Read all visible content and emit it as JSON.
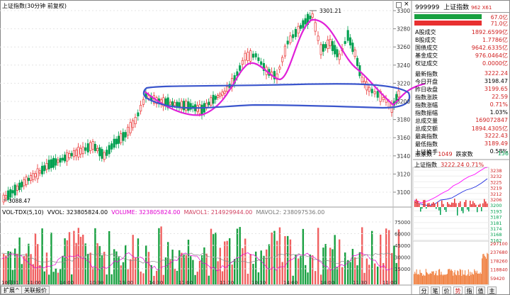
{
  "chart_header": {
    "title": "上证指数(30分钟 前复权)",
    "vol_label": "VOL-TDX(5,10)",
    "vvol": "VVOL: 323805824.00",
    "volume": "VOLUME: 323805824.00",
    "mavol1": "MAVOL1: 214929944.00",
    "mavol2": "MAVOL2: 238097536.00"
  },
  "price_axis": [
    "3300",
    "3280",
    "3260",
    "3240",
    "3220",
    "3200",
    "3180",
    "3160",
    "3140",
    "3120",
    "3100"
  ],
  "volume_axis": [
    "75000",
    "60000",
    "45000",
    "30000",
    "15000"
  ],
  "x_axis_labels": [
    "10月31",
    "11:00",
    "14:00",
    "10:30",
    "15:00",
    "14:30",
    "11:00",
    "11:30",
    "10:30",
    "14:00",
    "14:00",
    "11:30",
    "11:00",
    "30分钟"
  ],
  "annotations": {
    "high": "3301.21",
    "low": "3088.47"
  },
  "sidebar": {
    "code": "999999",
    "name": "上证指数",
    "extra": "962 X61",
    "bar1_value": "67.0亿",
    "bar2_value": "71.0亿",
    "rows": [
      {
        "k": "A股成交",
        "v": "1892.6599亿"
      },
      {
        "k": "B股成交",
        "v": "1.7786亿"
      },
      {
        "k": "国债成交",
        "v": "9642.6335亿"
      },
      {
        "k": "基金成交",
        "v": "976.0464亿"
      },
      {
        "k": "权证成交",
        "v": "0.0000亿"
      },
      {
        "k": "最新指数",
        "v": "3222.24"
      },
      {
        "k": "今日开盘",
        "v": "3198.47"
      },
      {
        "k": "昨日收盘",
        "v": "3199.65"
      },
      {
        "k": "指数涨跌",
        "v": "22.59"
      },
      {
        "k": "指数涨幅",
        "v": "0.71%"
      },
      {
        "k": "指数振幅",
        "v": "1.03%"
      },
      {
        "k": "总成交量",
        "v": "169072847"
      },
      {
        "k": "总成交额",
        "v": "1894.4305亿"
      },
      {
        "k": "最高指数",
        "v": "3222.43"
      },
      {
        "k": "最低指数",
        "v": "3189.49"
      },
      {
        "k": "上证换手",
        "v": "0.58%"
      }
    ],
    "up_label": "涨家数",
    "up_count": "1049",
    "down_label": "跌家数",
    "down_count": "156",
    "mini_title": "上证指数",
    "mini_value": "3222.24",
    "mini_pct": "0.71%",
    "mini_price_axis": [
      "3238",
      "3232",
      "3225",
      "3219",
      "3212",
      "3206",
      "3200",
      "3193",
      "3187",
      "3181",
      "3174",
      "3168",
      "3162"
    ],
    "mini_vol_axis": [
      "297100",
      "237680",
      "178260",
      "118840",
      "59420"
    ]
  },
  "tabs": {
    "expand": "扩展^",
    "watch": "关联报价"
  },
  "mini_tabs": [
    "分",
    "笔",
    "价",
    "势",
    "指",
    "值",
    "主"
  ],
  "colors": {
    "up": "#e83030",
    "down": "#00a050",
    "ma_pink": "#ff00ff",
    "ma_blue": "#1a28e0",
    "annotation_pink": "#e000d0",
    "annotation_blue": "#3050d0"
  }
}
